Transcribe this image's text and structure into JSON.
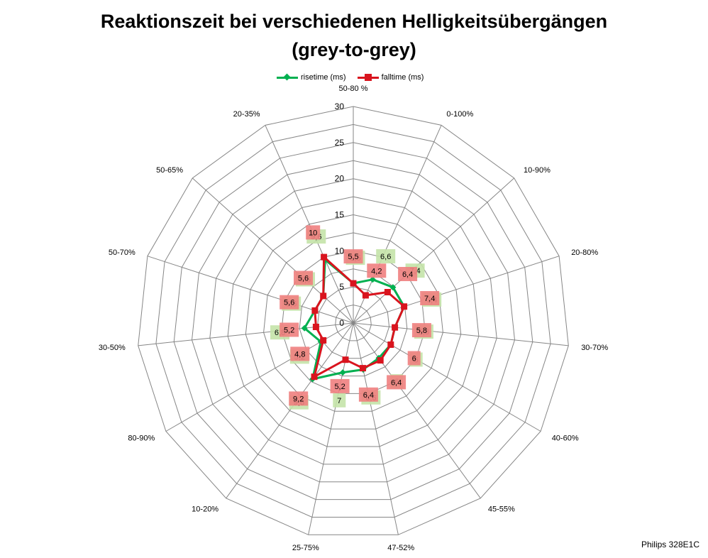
{
  "chart_data": {
    "type": "radar",
    "title_line1": "Reaktionszeit bei verschiedenen Helligkeitsübergängen",
    "title_line2": "(grey-to-grey)",
    "categories": [
      "50-80 %",
      "0-100%",
      "10-90%",
      "20-80%",
      "30-70%",
      "40-60%",
      "45-55%",
      "47-52%",
      "25-75%",
      "10-20%",
      "80-90%",
      "30-50%",
      "50-70%",
      "50-65%",
      "20-35%"
    ],
    "ticks": [
      0,
      5,
      10,
      15,
      20,
      25,
      30
    ],
    "rmax": 30,
    "grid": true,
    "legend_position": "top",
    "series": [
      {
        "name": "risetime (ms)",
        "color": "#00b050",
        "marker": "diamond",
        "label_color": "#c4e3a8",
        "values": [
          5.5,
          6.6,
          7.4,
          7.4,
          5.8,
          6,
          6,
          6.6,
          7,
          9.6,
          5.2,
          6.8,
          5.6,
          5.6,
          9.6
        ]
      },
      {
        "name": "falltime (ms)",
        "color": "#d9141e",
        "marker": "square",
        "label_color": "#f08080",
        "values": [
          5.5,
          4.2,
          6.4,
          7.4,
          5.8,
          6,
          6.4,
          6.4,
          5.2,
          9.2,
          4.8,
          5.2,
          5.6,
          5.6,
          10
        ]
      }
    ],
    "data_labels": [
      [
        "5,5",
        "5,5"
      ],
      [
        "6,6",
        "4,2"
      ],
      [
        "7,4",
        "6,4"
      ],
      [
        "7,4",
        "7,4"
      ],
      [
        "5,8",
        "5,8"
      ],
      [
        "6",
        "6"
      ],
      [
        "6",
        "6,4"
      ],
      [
        "6,6",
        "6,4"
      ],
      [
        "7",
        "5,2"
      ],
      [
        "9,6",
        "9,2"
      ],
      [
        "5,2",
        "4,8"
      ],
      [
        "6,8",
        "5,2"
      ],
      [
        "5,6",
        "5,6"
      ],
      [
        "5,6",
        "5,6"
      ],
      [
        "9,6",
        "10"
      ]
    ]
  },
  "watermark": "Philips 328E1C"
}
